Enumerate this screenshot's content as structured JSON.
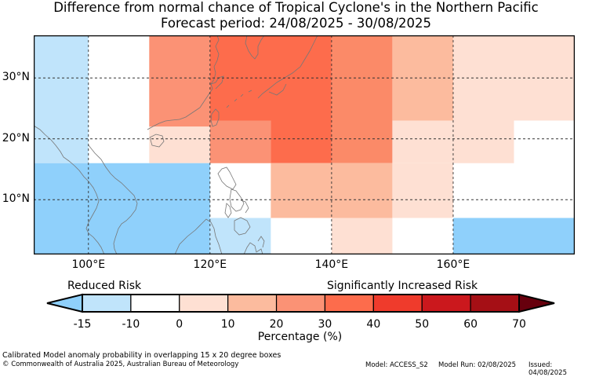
{
  "title_line1": "Difference from normal chance of Tropical Cyclone's in the Northern Pacific",
  "title_line2": "Forecast period: 24/08/2025 - 30/08/2025",
  "map": {
    "lon_range": [
      91,
      180
    ],
    "lat_range": [
      1,
      37
    ],
    "lon_ticks": [
      {
        "value": 100,
        "label": "100°E"
      },
      {
        "value": 120,
        "label": "120°E"
      },
      {
        "value": 140,
        "label": "140°E"
      },
      {
        "value": 160,
        "label": "160°E"
      }
    ],
    "lat_ticks": [
      {
        "value": 30,
        "label": "30°N"
      },
      {
        "value": 20,
        "label": "20°N"
      },
      {
        "value": 10,
        "label": "10°N"
      }
    ],
    "cells": [
      {
        "lon0": 91,
        "lon1": 100,
        "lat0": 16,
        "lat1": 37,
        "color": "#c0e4fb"
      },
      {
        "lon0": 110,
        "lon1": 120,
        "lat0": 22,
        "lat1": 37,
        "color": "#fb9275"
      },
      {
        "lon0": 120,
        "lon1": 140,
        "lat0": 23,
        "lat1": 37,
        "color": "#fd6c4c"
      },
      {
        "lon0": 140,
        "lon1": 150,
        "lat0": 23,
        "lat1": 37,
        "color": "#fb8a68"
      },
      {
        "lon0": 150,
        "lon1": 160,
        "lat0": 23,
        "lat1": 37,
        "color": "#fcbb9e"
      },
      {
        "lon0": 160,
        "lon1": 180,
        "lat0": 23,
        "lat1": 37,
        "color": "#fee0d3"
      },
      {
        "lon0": 110,
        "lon1": 120,
        "lat0": 16,
        "lat1": 22,
        "color": "#fee0d3"
      },
      {
        "lon0": 120,
        "lon1": 130,
        "lat0": 16,
        "lat1": 23,
        "color": "#fb9275"
      },
      {
        "lon0": 130,
        "lon1": 140,
        "lat0": 16,
        "lat1": 23,
        "color": "#fd6c4c"
      },
      {
        "lon0": 140,
        "lon1": 150,
        "lat0": 16,
        "lat1": 23,
        "color": "#fb8a68"
      },
      {
        "lon0": 150,
        "lon1": 170,
        "lat0": 16,
        "lat1": 23,
        "color": "#fee0d3"
      },
      {
        "lon0": 91,
        "lon1": 120,
        "lat0": 1,
        "lat1": 16,
        "color": "#8fd0fb"
      },
      {
        "lon0": 130,
        "lon1": 150,
        "lat0": 7,
        "lat1": 16,
        "color": "#fcbb9e"
      },
      {
        "lon0": 150,
        "lon1": 160,
        "lat0": 7,
        "lat1": 16,
        "color": "#fee0d3"
      },
      {
        "lon0": 120,
        "lon1": 130,
        "lat0": 1,
        "lat1": 7,
        "color": "#c0e4fb"
      },
      {
        "lon0": 140,
        "lon1": 150,
        "lat0": 1,
        "lat1": 7,
        "color": "#fee0d3"
      },
      {
        "lon0": 160,
        "lon1": 180,
        "lat0": 1,
        "lat1": 7,
        "color": "#8fd0fb"
      }
    ]
  },
  "colorbar": {
    "label_left": "Reduced Risk",
    "label_right": "Significantly Increased Risk",
    "axis_label": "Percentage (%)",
    "low_extend_color": "#8fd0fb",
    "high_extend_color": "#67000d",
    "bins": [
      {
        "color": "#c0e4fb"
      },
      {
        "color": "#ffffff"
      },
      {
        "color": "#fee0d3"
      },
      {
        "color": "#fcbb9e"
      },
      {
        "color": "#fb9275"
      },
      {
        "color": "#fd6c4c"
      },
      {
        "color": "#ef3b2c"
      },
      {
        "color": "#cb181d"
      },
      {
        "color": "#a50f15"
      }
    ],
    "ticks": [
      "-15",
      "-10",
      "0",
      "10",
      "20",
      "30",
      "40",
      "50",
      "60",
      "70"
    ]
  },
  "footer": {
    "description": "Calibrated Model anomaly probability in overlapping 15 x 20 degree boxes",
    "copyright": "© Commonwealth of Australia 2025, Australian Bureau of Meteorology",
    "model": "Model: ACCESS_S2",
    "model_run": "Model Run: 02/08/2025",
    "issued": "Issued: 04/08/2025"
  }
}
